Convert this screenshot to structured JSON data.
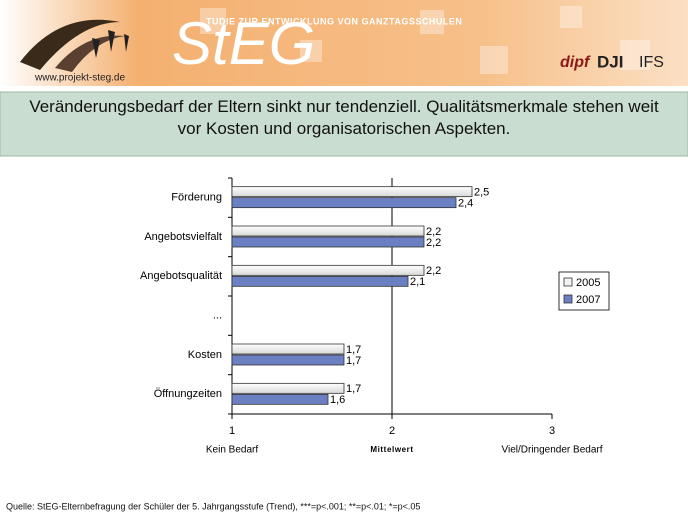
{
  "header": {
    "url": "www.projekt-steg.de",
    "tagline": "TUDIE ZUR ENTWICKLUNG VON GANZTAGSSCHULEN",
    "logo": "StEG",
    "partners": [
      "dipf",
      "DJI",
      "IFS"
    ]
  },
  "chart_data": {
    "type": "bar",
    "orientation": "horizontal",
    "title": "Veränderungsbedarf der Eltern sinkt nur tendenziell. Qualitätsmerkmale stehen weit vor Kosten und organisatorischen Aspekten.",
    "categories": [
      "Förderung",
      "Angebotsvielfalt",
      "Angebotsqualität",
      "...",
      "Kosten",
      "Öffnungzeiten"
    ],
    "series": [
      {
        "name": "2005",
        "color": "#f2f2f2",
        "values": [
          2.5,
          2.2,
          2.2,
          null,
          1.7,
          1.7
        ],
        "value_labels": [
          "2,5",
          "2,2",
          "2,2",
          null,
          "1,7",
          "1,7"
        ]
      },
      {
        "name": "2007",
        "color": "#6b7fc3",
        "values": [
          2.4,
          2.2,
          2.1,
          null,
          1.7,
          1.6
        ],
        "value_labels": [
          "2,4",
          "2,2",
          "2,1",
          null,
          "1,7",
          "1,6"
        ]
      }
    ],
    "xlim": [
      1,
      3
    ],
    "xticks": [
      1,
      2,
      3
    ],
    "reference_line": 2,
    "axis_annotations": [
      {
        "x": 1,
        "text": "Kein Bedarf"
      },
      {
        "x": 2,
        "text": "Mittelwert"
      },
      {
        "x": 3,
        "text": "Viel/Dringender Bedarf"
      }
    ],
    "legend": "right"
  },
  "footer": "Quelle: StEG-Elternbefragung der Schüler der 5. Jahrgangsstufe (Trend), ***=p<.001; **=p<.01; *=p<.05"
}
